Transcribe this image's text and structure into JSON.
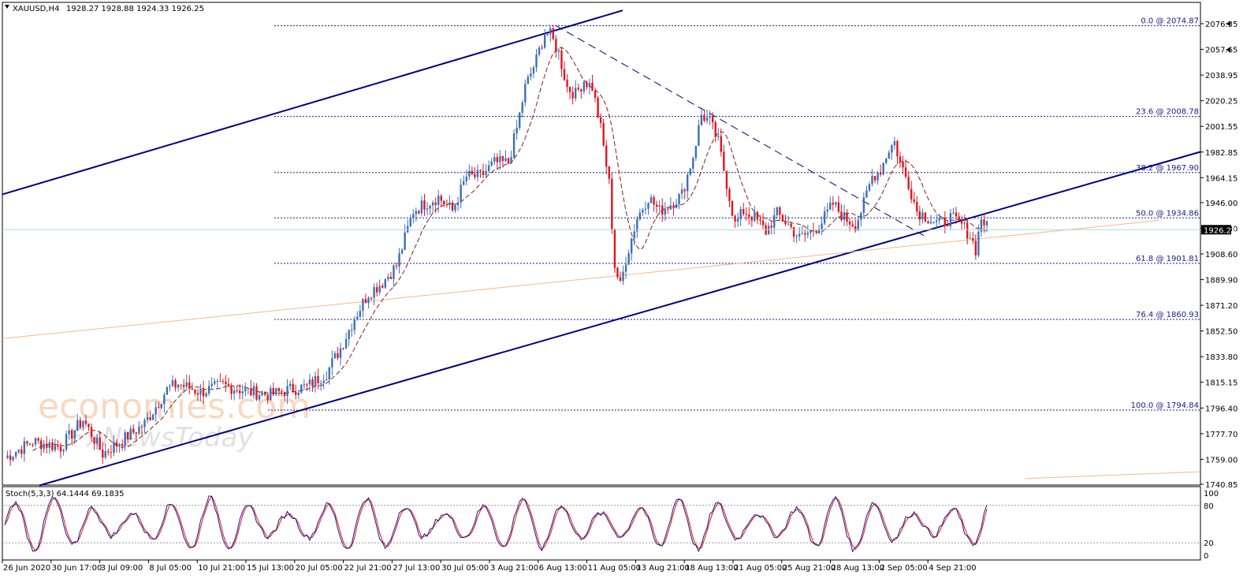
{
  "header": {
    "symbol": "XAUUSD,H4",
    "ohlc": "1928.27 1928.88 1924.33 1926.25"
  },
  "watermark": {
    "line1": "economies.com",
    "line2": "FxNewsToday"
  },
  "current_price_label": "1926.25",
  "fib_levels": [
    {
      "label": "0.0 @ 2074.87",
      "price": 2074.87
    },
    {
      "label": "23.6 @ 2008.78",
      "price": 2008.78
    },
    {
      "label": "38.2 @ 1967.90",
      "price": 1967.9
    },
    {
      "label": "50.0 @ 1934.86",
      "price": 1934.86
    },
    {
      "label": "61.8 @ 1901.81",
      "price": 1901.81
    },
    {
      "label": "76.4 @ 1860.93",
      "price": 1860.93
    },
    {
      "label": "100.0 @ 1794.84",
      "price": 1794.84
    }
  ],
  "stoch": {
    "label": "Stoch(5,3,3) 64.1444 69.1835",
    "levels": [
      "100",
      "80",
      "20",
      "0"
    ],
    "upper": 80,
    "lower": 20
  },
  "colors": {
    "bull": "#3b6fb6",
    "bear": "#e0141e",
    "channel": "#000080",
    "fib": "#1a1a8c",
    "ma": "#8b1a1a",
    "stoch_main": "#1a1a8c",
    "stoch_signal": "#e0141e",
    "price_line": "#a6dbe0"
  },
  "chart_data": {
    "type": "candlestick",
    "symbol": "XAUUSD",
    "timeframe": "H4",
    "y_ticks": [
      "2076.35",
      "2057.65",
      "2038.95",
      "2020.25",
      "2001.55",
      "1982.85",
      "1964.15",
      "1946.00",
      "1927.30",
      "1908.60",
      "1889.90",
      "1871.20",
      "1852.50",
      "1833.80",
      "1815.15",
      "1796.40",
      "1777.70",
      "1759.00",
      "1740.85"
    ],
    "ylim": [
      1737,
      2086
    ],
    "x_ticks": [
      "26 Jun 2020",
      "30 Jun 17:00",
      "3 Jul 09:00",
      "8 Jul 05:00",
      "10 Jul 21:00",
      "15 Jul 13:00",
      "20 Jul 05:00",
      "22 Jul 21:00",
      "27 Jul 13:00",
      "30 Jul 05:00",
      "3 Aug 21:00",
      "6 Aug 13:00",
      "11 Aug 05:00",
      "13 Aug 21:00",
      "18 Aug 13:00",
      "21 Aug 05:00",
      "25 Aug 21:00",
      "28 Aug 13:00",
      "2 Sep 05:00",
      "4 Sep 21:00"
    ],
    "keypoints": [
      [
        0,
        1760
      ],
      [
        10,
        1772
      ],
      [
        20,
        1768
      ],
      [
        28,
        1788
      ],
      [
        35,
        1763
      ],
      [
        42,
        1773
      ],
      [
        50,
        1785
      ],
      [
        58,
        1810
      ],
      [
        62,
        1814
      ],
      [
        70,
        1808
      ],
      [
        78,
        1813
      ],
      [
        88,
        1808
      ],
      [
        95,
        1806
      ],
      [
        102,
        1810
      ],
      [
        108,
        1812
      ],
      [
        115,
        1822
      ],
      [
        120,
        1840
      ],
      [
        125,
        1862
      ],
      [
        130,
        1880
      ],
      [
        135,
        1888
      ],
      [
        140,
        1900
      ],
      [
        143,
        1920
      ],
      [
        146,
        1940
      ],
      [
        150,
        1945
      ],
      [
        155,
        1950
      ],
      [
        160,
        1940
      ],
      [
        165,
        1965
      ],
      [
        170,
        1965
      ],
      [
        175,
        1975
      ],
      [
        180,
        1975
      ],
      [
        183,
        2000
      ],
      [
        186,
        2030
      ],
      [
        190,
        2050
      ],
      [
        193,
        2070
      ],
      [
        195,
        2068
      ],
      [
        198,
        2055
      ],
      [
        201,
        2030
      ],
      [
        204,
        2025
      ],
      [
        207,
        2035
      ],
      [
        210,
        2030
      ],
      [
        213,
        2000
      ],
      [
        216,
        1960
      ],
      [
        218,
        1900
      ],
      [
        220,
        1885
      ],
      [
        222,
        1905
      ],
      [
        226,
        1935
      ],
      [
        230,
        1950
      ],
      [
        234,
        1940
      ],
      [
        238,
        1945
      ],
      [
        242,
        1952
      ],
      [
        246,
        1980
      ],
      [
        249,
        2010
      ],
      [
        252,
        2005
      ],
      [
        255,
        1990
      ],
      [
        258,
        1960
      ],
      [
        261,
        1930
      ],
      [
        264,
        1940
      ],
      [
        268,
        1935
      ],
      [
        272,
        1925
      ],
      [
        276,
        1938
      ],
      [
        280,
        1930
      ],
      [
        284,
        1920
      ],
      [
        288,
        1925
      ],
      [
        292,
        1932
      ],
      [
        296,
        1945
      ],
      [
        300,
        1935
      ],
      [
        304,
        1930
      ],
      [
        307,
        1945
      ],
      [
        310,
        1965
      ],
      [
        313,
        1970
      ],
      [
        316,
        1985
      ],
      [
        318,
        1990
      ],
      [
        320,
        1975
      ],
      [
        323,
        1960
      ],
      [
        326,
        1940
      ],
      [
        330,
        1935
      ],
      [
        334,
        1930
      ],
      [
        338,
        1935
      ],
      [
        342,
        1930
      ],
      [
        345,
        1922
      ],
      [
        347,
        1912
      ],
      [
        349,
        1935
      ],
      [
        351,
        1928
      ]
    ],
    "stoch_main_series": "Stoch(5,3,3) main",
    "stoch_signal_series": "Stoch(5,3,3) signal"
  }
}
